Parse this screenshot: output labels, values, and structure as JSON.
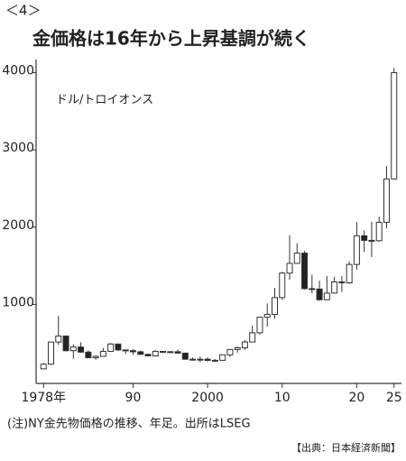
{
  "header": "＜4＞",
  "chart_data": {
    "type": "candlestick",
    "title": "金価格は16年から上昇基調が続く",
    "unit": "ドル/トロイオンス",
    "x": [
      1978,
      1979,
      1980,
      1981,
      1982,
      1983,
      1984,
      1985,
      1986,
      1987,
      1988,
      1989,
      1990,
      1991,
      1992,
      1993,
      1994,
      1995,
      1996,
      1997,
      1998,
      1999,
      2000,
      2001,
      2002,
      2003,
      2004,
      2005,
      2006,
      2007,
      2008,
      2009,
      2010,
      2011,
      2012,
      2013,
      2014,
      2015,
      2016,
      2017,
      2018,
      2019,
      2020,
      2021,
      2022,
      2023,
      2024,
      2025
    ],
    "open": [
      165,
      226,
      512,
      590,
      400,
      448,
      382,
      309,
      327,
      391,
      487,
      410,
      401,
      386,
      353,
      333,
      391,
      383,
      387,
      369,
      290,
      288,
      290,
      274,
      276,
      347,
      416,
      438,
      513,
      632,
      834,
      870,
      1088,
      1405,
      1531,
      1664,
      1204,
      1199,
      1060,
      1146,
      1291,
      1279,
      1517,
      1888,
      1829,
      1824,
      2063,
      2624
    ],
    "high": [
      243,
      512,
      850,
      599,
      481,
      510,
      405,
      340,
      438,
      500,
      485,
      415,
      423,
      403,
      360,
      406,
      396,
      396,
      415,
      367,
      313,
      326,
      313,
      293,
      349,
      416,
      454,
      537,
      725,
      841,
      1011,
      1212,
      1421,
      1895,
      1791,
      1693,
      1385,
      1307,
      1366,
      1357,
      1365,
      1557,
      2067,
      1959,
      2070,
      2135,
      2790,
      4060
    ],
    "low": [
      165,
      216,
      474,
      391,
      297,
      374,
      303,
      284,
      326,
      390,
      395,
      358,
      346,
      344,
      330,
      326,
      370,
      372,
      367,
      283,
      273,
      252,
      263,
      256,
      278,
      319,
      375,
      411,
      524,
      608,
      712,
      813,
      1058,
      1319,
      1540,
      1192,
      1142,
      1046,
      1061,
      1147,
      1160,
      1266,
      1451,
      1677,
      1615,
      1810,
      1984,
      2614
    ],
    "close": [
      226,
      512,
      590,
      400,
      448,
      382,
      309,
      327,
      391,
      487,
      410,
      401,
      386,
      353,
      333,
      391,
      383,
      387,
      369,
      290,
      288,
      290,
      274,
      276,
      347,
      416,
      438,
      513,
      632,
      834,
      870,
      1088,
      1405,
      1531,
      1664,
      1204,
      1199,
      1060,
      1146,
      1291,
      1279,
      1517,
      1888,
      1829,
      1824,
      2063,
      2624,
      4000
    ],
    "up_color": "#ffffff",
    "down_color": "#222222",
    "xlim": [
      1977,
      2026
    ],
    "xticks": [
      {
        "value": 1978,
        "label": "1978年"
      },
      {
        "value": 1990,
        "label": "90"
      },
      {
        "value": 2000,
        "label": "2000"
      },
      {
        "value": 2010,
        "label": "10"
      },
      {
        "value": 2020,
        "label": "20"
      },
      {
        "value": 2025,
        "label": "25"
      }
    ],
    "ylim": [
      0,
      4100
    ],
    "yticks": [
      1000,
      2000,
      3000,
      4000
    ]
  },
  "note": "(注)NY金先物価格の推移、年足。出所はLSEG",
  "source": "【出典：日本経済新聞】"
}
